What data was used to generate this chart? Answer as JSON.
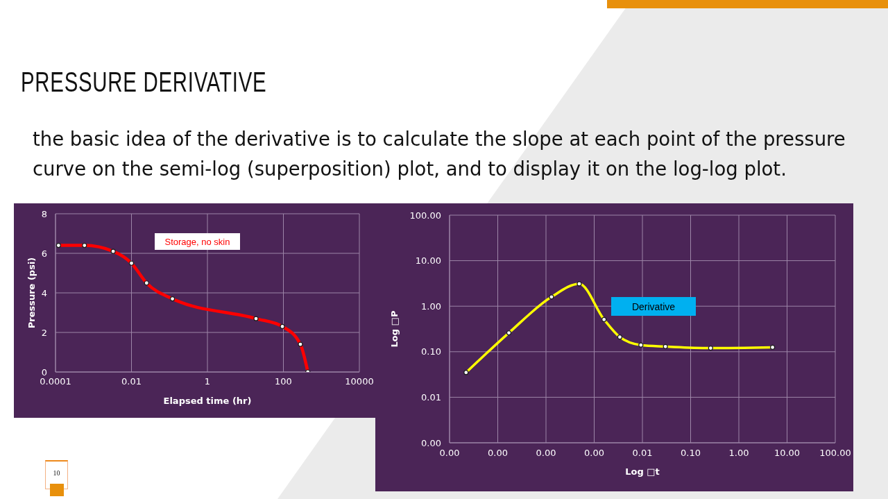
{
  "chart_data": [
    {
      "type": "line",
      "title": "PRESSURE DERIVATIVE",
      "subtitle": "the basic idea of the derivative is to calculate the slope at each point of the pressure curve on the semi-log (superposition) plot, and to display it on the log-log plot.",
      "xlabel": "Elapsed time (hr)",
      "ylabel": "Pressure (psi)",
      "annotations": [
        "10"
      ],
      "series": [
        {
          "name": "Storage, no skin",
          "color": "#ff0000",
          "x": [
            0.00012,
            0.00058,
            0.0033,
            0.01,
            0.025,
            0.12,
            19,
            94,
            280,
            440
          ],
          "values": [
            6.4,
            6.4,
            6.1,
            5.5,
            4.5,
            3.7,
            2.7,
            2.3,
            1.4,
            0
          ]
        }
      ],
      "xlim": [
        0.0001,
        10000
      ],
      "xticks": [
        0.0001,
        0.01,
        1,
        100,
        10000
      ],
      "ylim": [
        0,
        8
      ],
      "yticks": [
        0,
        2,
        4,
        6,
        8
      ],
      "log": "x",
      "grid": true,
      "marker": "circle"
    },
    {
      "type": "line",
      "xlabel": "Log □t",
      "ylabel": "Log □P",
      "series": [
        {
          "name": "Derivative",
          "color": "#ffff00",
          "x": [
            2.2e-06,
            1.7e-05,
            0.00013,
            0.00049,
            0.0016,
            0.0034,
            0.0093,
            0.03,
            0.26,
            5
          ],
          "values": [
            0.035,
            0.26,
            1.6,
            3.1,
            0.51,
            0.21,
            0.14,
            0.13,
            0.12,
            0.125
          ]
        }
      ],
      "xlim": [
        1e-06,
        100
      ],
      "xticks": [
        {
          "value": 1e-06,
          "label": "0.00"
        },
        {
          "value": 1e-05,
          "label": "0.00"
        },
        {
          "value": 0.0001,
          "label": "0.00"
        },
        {
          "value": 0.001,
          "label": "0.00"
        },
        0.01,
        {
          "value": 0.1,
          "label": "0.10"
        },
        {
          "value": 1,
          "label": "1.00"
        },
        {
          "value": 10,
          "label": "10.00"
        },
        {
          "value": 100,
          "label": "100.00"
        }
      ],
      "ylim": [
        0.001,
        100
      ],
      "yticks": [
        {
          "value": 0.001,
          "label": "0.00"
        },
        0.01,
        {
          "value": 0.1,
          "label": "0.10"
        },
        {
          "value": 1,
          "label": "1.00"
        },
        {
          "value": 10,
          "label": "10.00"
        },
        {
          "value": 100,
          "label": "100.00"
        }
      ],
      "log": "xy",
      "grid": true,
      "marker": "circle"
    }
  ]
}
